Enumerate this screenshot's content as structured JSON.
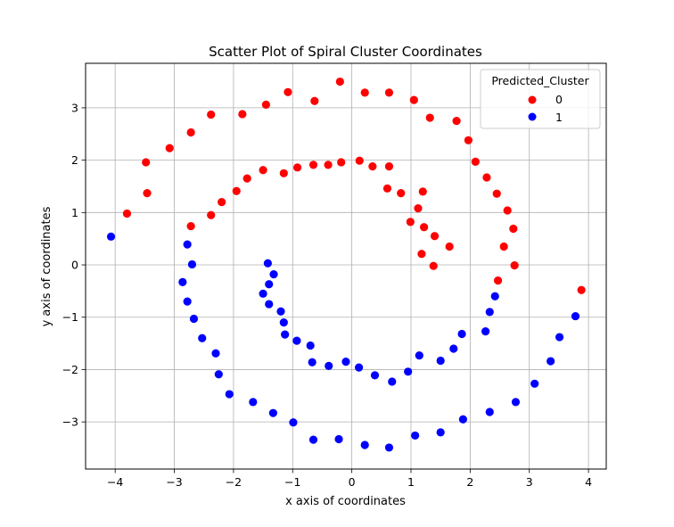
{
  "chart_data": {
    "type": "scatter",
    "title": "Scatter Plot of Spiral Cluster Coordinates",
    "xlabel": "x axis of coordinates",
    "ylabel": "y axis of coordinates",
    "xlim": [
      -4.5,
      4.3
    ],
    "ylim": [
      -3.9,
      3.85
    ],
    "xticks": [
      -4,
      -3,
      -2,
      -1,
      0,
      1,
      2,
      3,
      4
    ],
    "yticks": [
      -3,
      -2,
      -1,
      0,
      1,
      2,
      3
    ],
    "xtick_labels": [
      "−4",
      "−3",
      "−2",
      "−1",
      "0",
      "1",
      "2",
      "3",
      "4"
    ],
    "ytick_labels": [
      "−3",
      "−2",
      "−1",
      "0",
      "1",
      "2",
      "3"
    ],
    "grid": true,
    "legend": {
      "title": "Predicted_Cluster",
      "placement": "top-right"
    },
    "series": [
      {
        "name": "0",
        "color": "#ff0000",
        "points": [
          [
            -0.2,
            3.5
          ],
          [
            -1.08,
            3.3
          ],
          [
            0.22,
            3.29
          ],
          [
            0.63,
            3.29
          ],
          [
            -0.63,
            3.13
          ],
          [
            -1.45,
            3.06
          ],
          [
            1.05,
            3.15
          ],
          [
            -1.85,
            2.88
          ],
          [
            -2.38,
            2.87
          ],
          [
            1.32,
            2.81
          ],
          [
            1.77,
            2.75
          ],
          [
            -2.72,
            2.53
          ],
          [
            1.97,
            2.38
          ],
          [
            -3.08,
            2.23
          ],
          [
            2.09,
            1.97
          ],
          [
            -3.48,
            1.96
          ],
          [
            0.13,
            1.99
          ],
          [
            -0.18,
            1.96
          ],
          [
            -0.4,
            1.91
          ],
          [
            -0.65,
            1.91
          ],
          [
            0.63,
            1.88
          ],
          [
            0.35,
            1.88
          ],
          [
            -0.92,
            1.86
          ],
          [
            -1.5,
            1.81
          ],
          [
            -1.15,
            1.75
          ],
          [
            -1.77,
            1.65
          ],
          [
            2.28,
            1.67
          ],
          [
            0.6,
            1.46
          ],
          [
            0.83,
            1.37
          ],
          [
            1.2,
            1.4
          ],
          [
            -1.95,
            1.41
          ],
          [
            2.45,
            1.36
          ],
          [
            -3.46,
            1.37
          ],
          [
            -2.2,
            1.2
          ],
          [
            1.12,
            1.08
          ],
          [
            2.63,
            1.04
          ],
          [
            -3.8,
            0.98
          ],
          [
            -2.38,
            0.95
          ],
          [
            0.99,
            0.82
          ],
          [
            -2.72,
            0.74
          ],
          [
            1.22,
            0.72
          ],
          [
            2.73,
            0.69
          ],
          [
            1.4,
            0.55
          ],
          [
            1.65,
            0.35
          ],
          [
            2.57,
            0.35
          ],
          [
            1.18,
            0.21
          ],
          [
            1.38,
            -0.02
          ],
          [
            2.75,
            -0.01
          ],
          [
            2.47,
            -0.3
          ],
          [
            3.88,
            -0.48
          ]
        ]
      },
      {
        "name": "1",
        "color": "#0000ff",
        "points": [
          [
            -4.07,
            0.54
          ],
          [
            -2.78,
            0.39
          ],
          [
            -2.7,
            0.01
          ],
          [
            -1.42,
            0.03
          ],
          [
            -1.32,
            -0.18
          ],
          [
            -2.86,
            -0.33
          ],
          [
            -1.4,
            -0.37
          ],
          [
            -1.5,
            -0.55
          ],
          [
            2.42,
            -0.6
          ],
          [
            -2.78,
            -0.7
          ],
          [
            -1.4,
            -0.75
          ],
          [
            -1.2,
            -0.89
          ],
          [
            2.33,
            -0.9
          ],
          [
            -2.67,
            -1.03
          ],
          [
            -1.15,
            -1.1
          ],
          [
            3.78,
            -0.98
          ],
          [
            -1.13,
            -1.33
          ],
          [
            1.86,
            -1.32
          ],
          [
            2.26,
            -1.27
          ],
          [
            -2.53,
            -1.4
          ],
          [
            -0.93,
            -1.45
          ],
          [
            3.51,
            -1.38
          ],
          [
            -0.7,
            -1.54
          ],
          [
            1.72,
            -1.6
          ],
          [
            -2.3,
            -1.69
          ],
          [
            1.14,
            -1.73
          ],
          [
            -0.67,
            -1.86
          ],
          [
            -0.39,
            -1.93
          ],
          [
            -0.1,
            -1.85
          ],
          [
            1.5,
            -1.83
          ],
          [
            3.36,
            -1.84
          ],
          [
            0.12,
            -1.96
          ],
          [
            0.95,
            -2.04
          ],
          [
            0.39,
            -2.11
          ],
          [
            -2.25,
            -2.09
          ],
          [
            0.68,
            -2.23
          ],
          [
            3.09,
            -2.27
          ],
          [
            -2.07,
            -2.47
          ],
          [
            -1.67,
            -2.62
          ],
          [
            2.77,
            -2.62
          ],
          [
            -1.33,
            -2.83
          ],
          [
            2.33,
            -2.81
          ],
          [
            1.88,
            -2.95
          ],
          [
            -0.99,
            -3.01
          ],
          [
            1.5,
            -3.2
          ],
          [
            1.07,
            -3.26
          ],
          [
            -0.65,
            -3.34
          ],
          [
            -0.22,
            -3.33
          ],
          [
            0.22,
            -3.44
          ],
          [
            0.63,
            -3.49
          ]
        ]
      }
    ]
  }
}
